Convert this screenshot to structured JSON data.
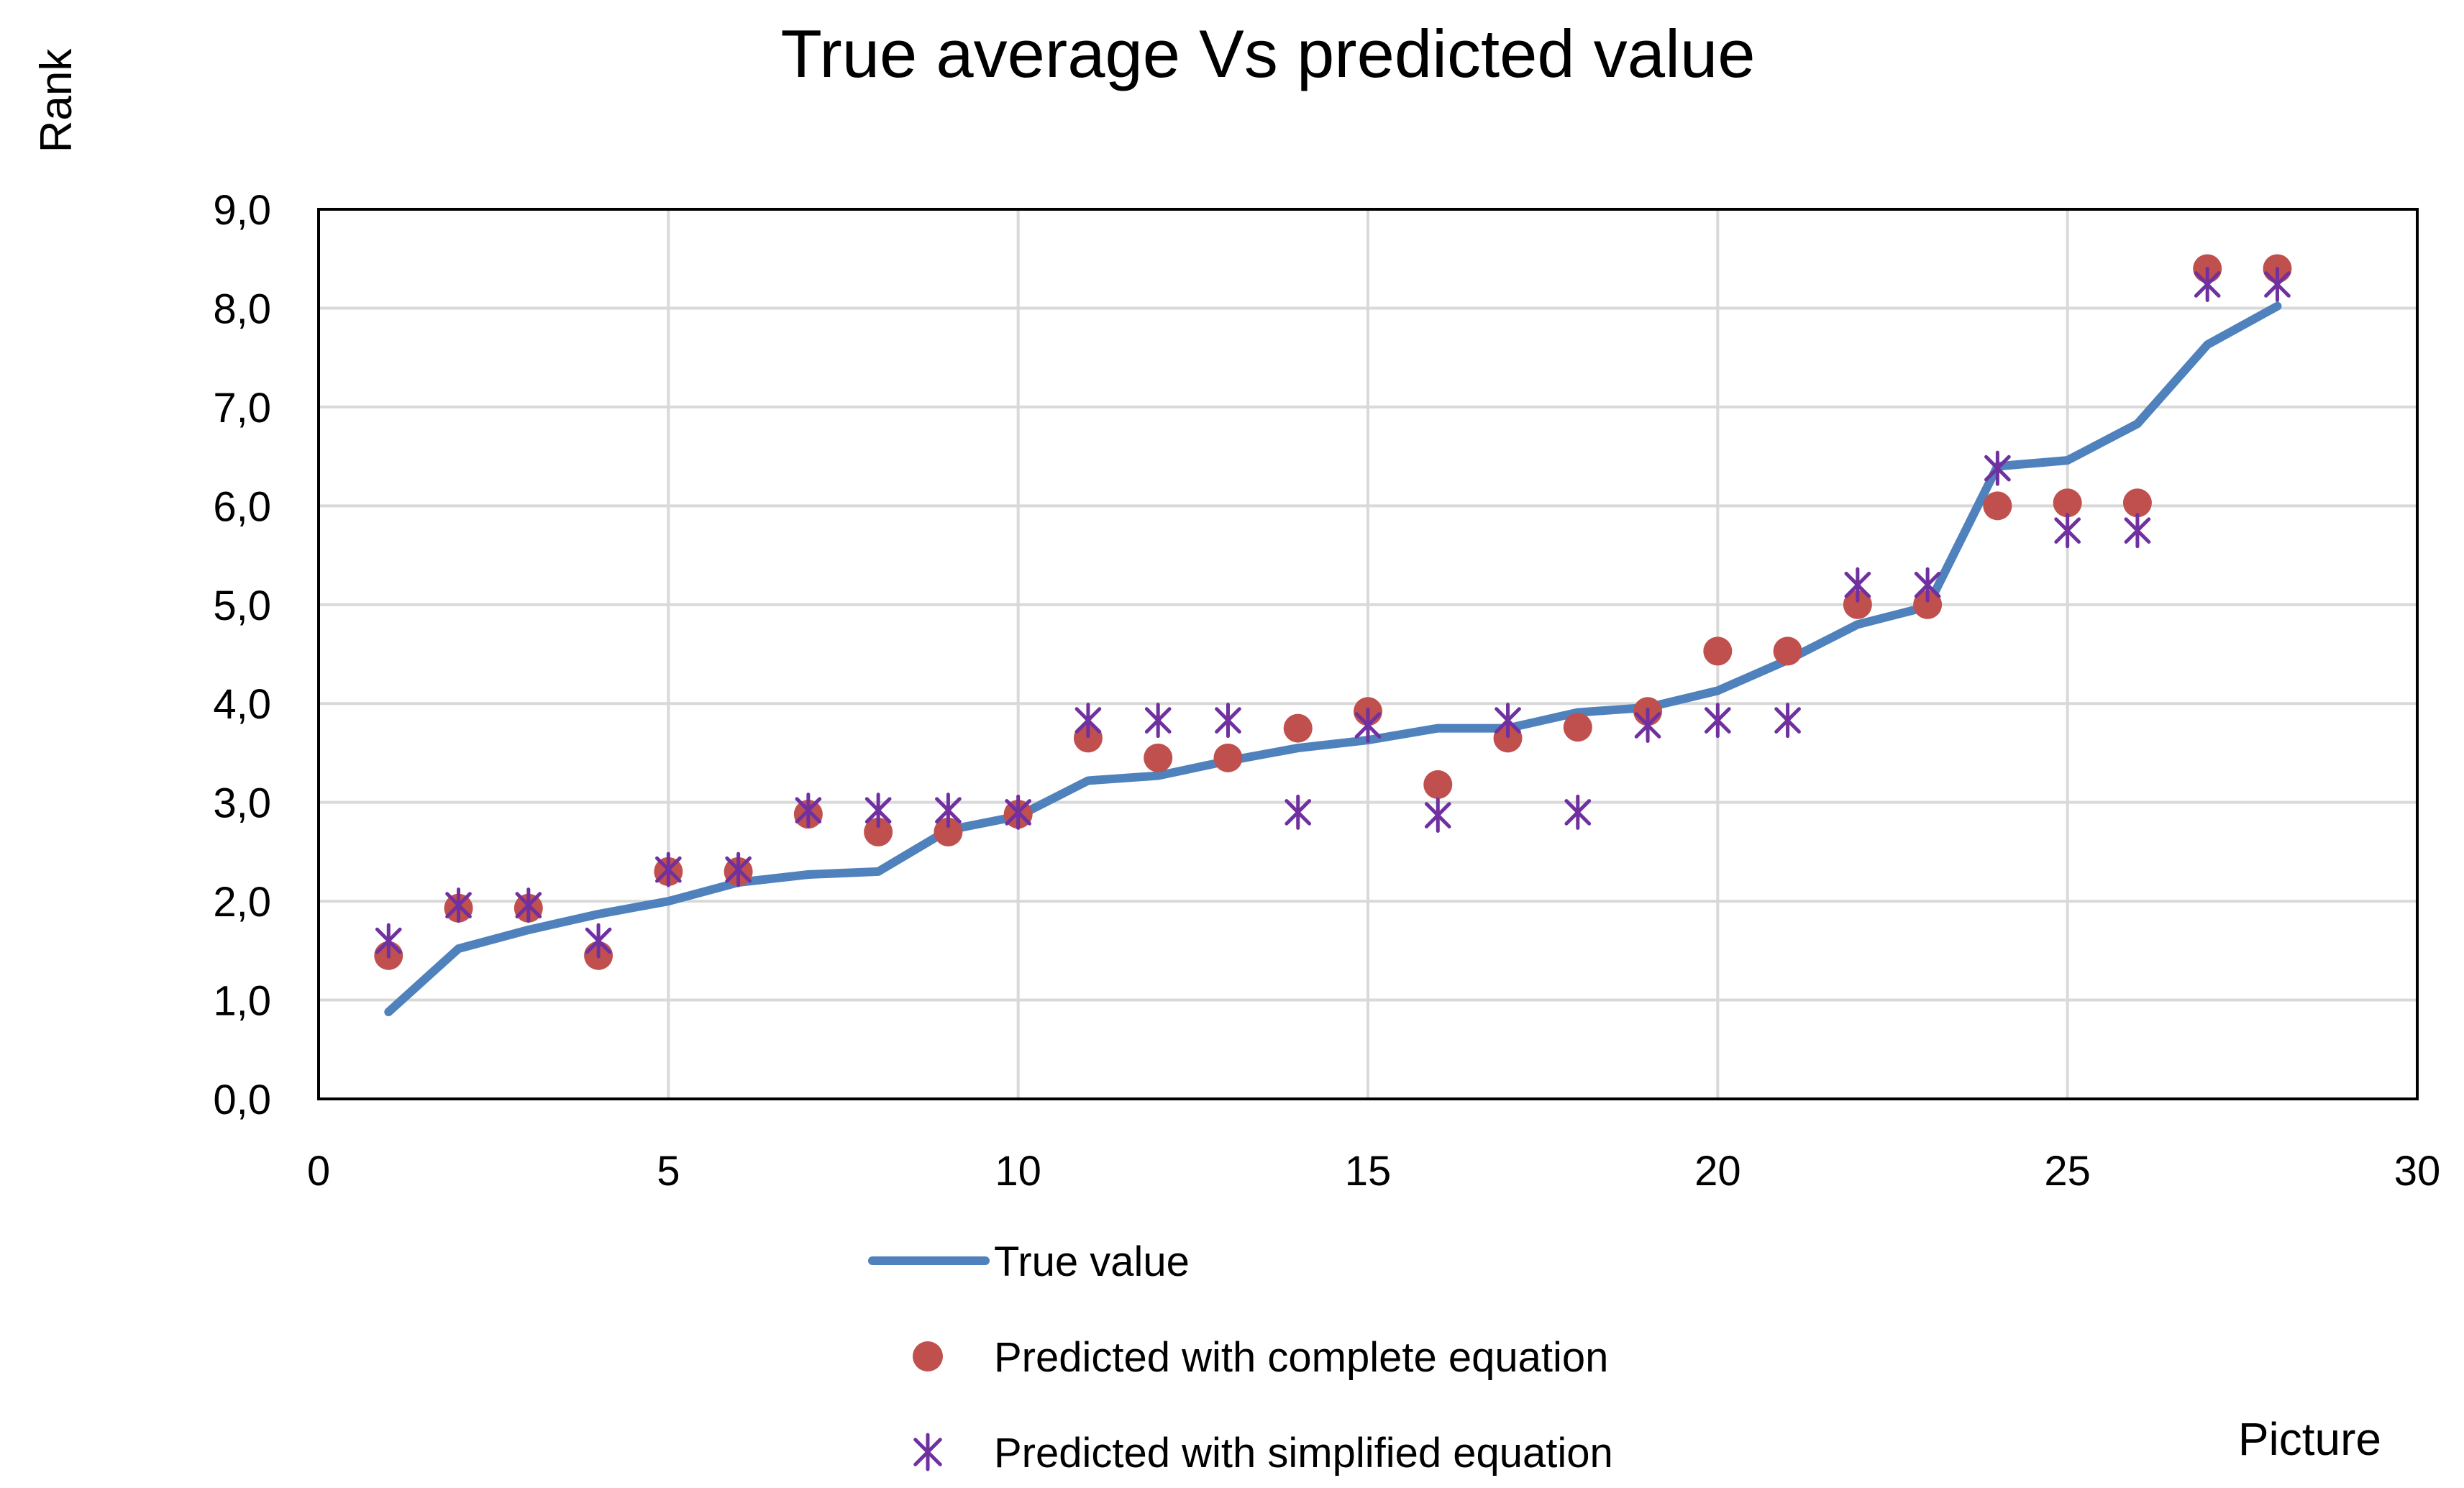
{
  "chart_data": {
    "type": "line",
    "title": "True average Vs predicted value",
    "xlabel": "Picture",
    "ylabel": "Rank",
    "xlim": [
      0,
      30
    ],
    "ylim": [
      0,
      9
    ],
    "x_ticks": [
      0,
      5,
      10,
      15,
      20,
      25,
      30
    ],
    "x_tick_labels": [
      "0",
      "5",
      "10",
      "15",
      "20",
      "25",
      "30"
    ],
    "y_ticks": [
      0,
      1,
      2,
      3,
      4,
      5,
      6,
      7,
      8,
      9
    ],
    "y_tick_labels": [
      "0,0",
      "1,0",
      "2,0",
      "3,0",
      "4,0",
      "5,0",
      "6,0",
      "7,0",
      "8,0",
      "9,0"
    ],
    "grid": true,
    "legend_position": "bottom",
    "x": [
      1,
      2,
      3,
      4,
      5,
      6,
      7,
      8,
      9,
      10,
      11,
      12,
      13,
      14,
      15,
      16,
      17,
      18,
      19,
      20,
      21,
      22,
      23,
      24,
      25,
      26,
      27,
      28
    ],
    "series": [
      {
        "name": "True value",
        "style": "line",
        "color": "#4F81BD",
        "values": [
          0.88,
          1.52,
          1.71,
          1.87,
          2.0,
          2.19,
          2.27,
          2.3,
          2.72,
          2.86,
          3.22,
          3.27,
          3.42,
          3.55,
          3.63,
          3.75,
          3.75,
          3.91,
          3.96,
          4.13,
          4.44,
          4.8,
          4.98,
          6.4,
          6.46,
          6.83,
          7.63,
          8.02
        ]
      },
      {
        "name": "Predicted with complete equation",
        "style": "circle",
        "color": "#C0504D",
        "values": [
          1.45,
          1.93,
          1.93,
          1.45,
          2.3,
          2.3,
          2.88,
          2.7,
          2.7,
          2.88,
          3.65,
          3.45,
          3.45,
          3.75,
          3.92,
          3.18,
          3.65,
          3.76,
          3.92,
          4.53,
          4.53,
          5.0,
          5.0,
          6.0,
          6.03,
          6.03,
          8.4,
          8.4
        ]
      },
      {
        "name": "Predicted with simplified equation",
        "style": "star",
        "color": "#7030A0",
        "values": [
          1.6,
          1.96,
          1.96,
          1.6,
          2.32,
          2.32,
          2.92,
          2.92,
          2.92,
          2.9,
          3.83,
          3.83,
          3.83,
          2.9,
          3.78,
          2.87,
          3.83,
          2.9,
          3.78,
          3.83,
          3.83,
          5.2,
          5.2,
          6.38,
          5.75,
          5.75,
          8.24,
          8.24
        ]
      }
    ]
  }
}
